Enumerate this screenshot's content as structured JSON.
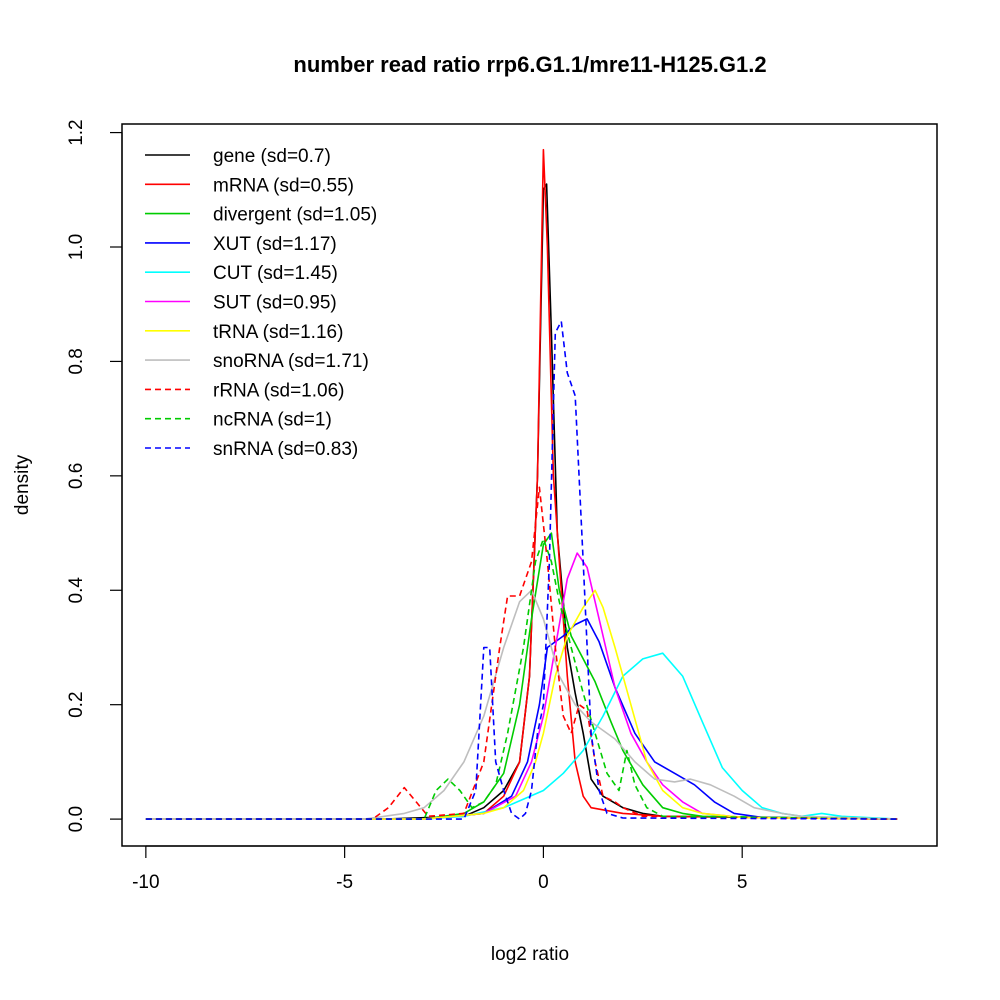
{
  "chart_data": {
    "type": "line",
    "title": "number read ratio rrp6.G1.1/mre11-H125.G1.2",
    "xlabel": "log2 ratio",
    "ylabel": "density",
    "xlim": [
      -10.6,
      9.9
    ],
    "ylim": [
      -0.047,
      1.215
    ],
    "x_ticks": [
      -10,
      -5,
      0,
      5
    ],
    "x_tick_labels": [
      "-10",
      "-5",
      "0",
      "5"
    ],
    "y_ticks": [
      0.0,
      0.2,
      0.4,
      0.6,
      0.8,
      1.0,
      1.2
    ],
    "y_tick_labels": [
      "0.0",
      "0.2",
      "0.4",
      "0.6",
      "0.8",
      "1.0",
      "1.2"
    ],
    "grid": false,
    "legend_position": "top-left",
    "series": [
      {
        "name": "gene (sd=0.7)",
        "color": "#000000",
        "dash": "solid",
        "points": [
          [
            -10,
            0
          ],
          [
            -4,
            0
          ],
          [
            -2,
            0.005
          ],
          [
            -1.5,
            0.02
          ],
          [
            -1,
            0.05
          ],
          [
            -0.6,
            0.1
          ],
          [
            -0.35,
            0.25
          ],
          [
            -0.15,
            0.6
          ],
          [
            0,
            1.1
          ],
          [
            0.08,
            1.11
          ],
          [
            0.2,
            0.85
          ],
          [
            0.35,
            0.5
          ],
          [
            0.6,
            0.3
          ],
          [
            0.8,
            0.22
          ],
          [
            1,
            0.15
          ],
          [
            1.2,
            0.07
          ],
          [
            1.5,
            0.04
          ],
          [
            2,
            0.02
          ],
          [
            2.5,
            0.01
          ],
          [
            3,
            0.005
          ],
          [
            8.9,
            0
          ]
        ]
      },
      {
        "name": "mRNA (sd=0.55)",
        "color": "#ff0000",
        "dash": "solid",
        "points": [
          [
            -10,
            0
          ],
          [
            -3,
            0
          ],
          [
            -1.5,
            0.01
          ],
          [
            -1,
            0.04
          ],
          [
            -0.6,
            0.1
          ],
          [
            -0.35,
            0.25
          ],
          [
            -0.15,
            0.6
          ],
          [
            0,
            1.17
          ],
          [
            0.1,
            1.0
          ],
          [
            0.25,
            0.6
          ],
          [
            0.45,
            0.4
          ],
          [
            0.6,
            0.25
          ],
          [
            0.8,
            0.1
          ],
          [
            1,
            0.04
          ],
          [
            1.2,
            0.02
          ],
          [
            2,
            0.01
          ],
          [
            3,
            0.005
          ],
          [
            8.9,
            0
          ]
        ]
      },
      {
        "name": "divergent (sd=1.05)",
        "color": "#00cc00",
        "dash": "solid",
        "points": [
          [
            -10,
            0
          ],
          [
            -3,
            0
          ],
          [
            -2,
            0.01
          ],
          [
            -1.5,
            0.03
          ],
          [
            -1,
            0.08
          ],
          [
            -0.6,
            0.2
          ],
          [
            -0.3,
            0.35
          ],
          [
            0,
            0.48
          ],
          [
            0.2,
            0.5
          ],
          [
            0.4,
            0.4
          ],
          [
            0.7,
            0.32
          ],
          [
            1,
            0.28
          ],
          [
            1.3,
            0.24
          ],
          [
            1.7,
            0.17
          ],
          [
            2,
            0.12
          ],
          [
            2.5,
            0.06
          ],
          [
            3,
            0.02
          ],
          [
            3.5,
            0.01
          ],
          [
            4,
            0.005
          ],
          [
            8.9,
            0
          ]
        ]
      },
      {
        "name": "XUT (sd=1.17)",
        "color": "#0000ff",
        "dash": "solid",
        "points": [
          [
            -10,
            0
          ],
          [
            -3,
            0
          ],
          [
            -1.5,
            0.01
          ],
          [
            -0.8,
            0.04
          ],
          [
            -0.4,
            0.1
          ],
          [
            -0.1,
            0.2
          ],
          [
            0.1,
            0.3
          ],
          [
            0.5,
            0.32
          ],
          [
            0.8,
            0.34
          ],
          [
            1.1,
            0.35
          ],
          [
            1.4,
            0.31
          ],
          [
            1.8,
            0.23
          ],
          [
            2.3,
            0.15
          ],
          [
            2.8,
            0.1
          ],
          [
            3.3,
            0.08
          ],
          [
            3.8,
            0.06
          ],
          [
            4.3,
            0.03
          ],
          [
            4.8,
            0.01
          ],
          [
            5.5,
            0.003
          ],
          [
            8.9,
            0
          ]
        ]
      },
      {
        "name": "CUT (sd=1.45)",
        "color": "#00ffff",
        "dash": "solid",
        "points": [
          [
            -10,
            0
          ],
          [
            -3,
            0
          ],
          [
            -2,
            0.005
          ],
          [
            -1,
            0.02
          ],
          [
            0,
            0.05
          ],
          [
            0.5,
            0.08
          ],
          [
            1,
            0.12
          ],
          [
            1.5,
            0.18
          ],
          [
            2,
            0.25
          ],
          [
            2.5,
            0.28
          ],
          [
            3,
            0.29
          ],
          [
            3.5,
            0.25
          ],
          [
            4,
            0.17
          ],
          [
            4.5,
            0.09
          ],
          [
            5,
            0.05
          ],
          [
            5.5,
            0.02
          ],
          [
            6,
            0.01
          ],
          [
            6.5,
            0.005
          ],
          [
            7,
            0.01
          ],
          [
            7.5,
            0.005
          ],
          [
            8.9,
            0
          ]
        ]
      },
      {
        "name": "SUT (sd=0.95)",
        "color": "#ff00ff",
        "dash": "solid",
        "points": [
          [
            -10,
            0
          ],
          [
            -3,
            0
          ],
          [
            -1.5,
            0.01
          ],
          [
            -0.7,
            0.04
          ],
          [
            -0.3,
            0.1
          ],
          [
            0,
            0.18
          ],
          [
            0.3,
            0.3
          ],
          [
            0.6,
            0.42
          ],
          [
            0.85,
            0.465
          ],
          [
            1.1,
            0.44
          ],
          [
            1.4,
            0.35
          ],
          [
            1.8,
            0.23
          ],
          [
            2.2,
            0.15
          ],
          [
            2.6,
            0.1
          ],
          [
            3,
            0.06
          ],
          [
            3.5,
            0.03
          ],
          [
            4,
            0.01
          ],
          [
            5,
            0.003
          ],
          [
            8.9,
            0
          ]
        ]
      },
      {
        "name": "tRNA (sd=1.16)",
        "color": "#ffff00",
        "dash": "solid",
        "points": [
          [
            -10,
            0
          ],
          [
            -3,
            0
          ],
          [
            -1.5,
            0.01
          ],
          [
            -1,
            0.02
          ],
          [
            -0.5,
            0.05
          ],
          [
            -0.2,
            0.1
          ],
          [
            0,
            0.15
          ],
          [
            0.3,
            0.25
          ],
          [
            0.6,
            0.32
          ],
          [
            1,
            0.37
          ],
          [
            1.3,
            0.4
          ],
          [
            1.5,
            0.37
          ],
          [
            1.8,
            0.3
          ],
          [
            2.2,
            0.2
          ],
          [
            2.6,
            0.1
          ],
          [
            3,
            0.05
          ],
          [
            3.5,
            0.02
          ],
          [
            4,
            0.01
          ],
          [
            5,
            0.003
          ],
          [
            8.9,
            0
          ]
        ]
      },
      {
        "name": "snoRNA (sd=1.71)",
        "color": "#bebebe",
        "dash": "solid",
        "points": [
          [
            -10,
            0
          ],
          [
            -4.5,
            0
          ],
          [
            -4,
            0.005
          ],
          [
            -3.5,
            0.01
          ],
          [
            -3,
            0.02
          ],
          [
            -2.5,
            0.05
          ],
          [
            -2,
            0.1
          ],
          [
            -1.5,
            0.18
          ],
          [
            -1,
            0.3
          ],
          [
            -0.6,
            0.38
          ],
          [
            -0.3,
            0.4
          ],
          [
            0,
            0.35
          ],
          [
            0.4,
            0.25
          ],
          [
            0.8,
            0.2
          ],
          [
            1.2,
            0.17
          ],
          [
            1.8,
            0.14
          ],
          [
            2.3,
            0.1
          ],
          [
            2.8,
            0.07
          ],
          [
            3.3,
            0.065
          ],
          [
            3.7,
            0.07
          ],
          [
            4.2,
            0.06
          ],
          [
            4.8,
            0.04
          ],
          [
            5.3,
            0.02
          ],
          [
            6,
            0.01
          ],
          [
            6.5,
            0.005
          ],
          [
            8.9,
            0
          ]
        ]
      },
      {
        "name": "rRNA (sd=1.06)",
        "color": "#ff0000",
        "dash": "dashed",
        "points": [
          [
            -10,
            0
          ],
          [
            -4.3,
            0
          ],
          [
            -3.9,
            0.02
          ],
          [
            -3.5,
            0.055
          ],
          [
            -3.2,
            0.03
          ],
          [
            -2.9,
            0.005
          ],
          [
            -2,
            0.01
          ],
          [
            -1.5,
            0.1
          ],
          [
            -1.1,
            0.3
          ],
          [
            -0.9,
            0.39
          ],
          [
            -0.6,
            0.39
          ],
          [
            -0.3,
            0.45
          ],
          [
            -0.1,
            0.58
          ],
          [
            0.1,
            0.45
          ],
          [
            0.3,
            0.3
          ],
          [
            0.5,
            0.18
          ],
          [
            0.7,
            0.15
          ],
          [
            0.9,
            0.2
          ],
          [
            1.1,
            0.19
          ],
          [
            1.3,
            0.1
          ],
          [
            1.5,
            0.04
          ],
          [
            1.8,
            0.03
          ],
          [
            2,
            0.02
          ],
          [
            2.5,
            0.005
          ],
          [
            8.9,
            0
          ]
        ]
      },
      {
        "name": "ncRNA (sd=1)",
        "color": "#00cc00",
        "dash": "dashed",
        "points": [
          [
            -10,
            0
          ],
          [
            -3,
            0
          ],
          [
            -2.7,
            0.05
          ],
          [
            -2.4,
            0.07
          ],
          [
            -2.1,
            0.05
          ],
          [
            -1.8,
            0.02
          ],
          [
            -1.5,
            0.03
          ],
          [
            -1.2,
            0.06
          ],
          [
            -0.9,
            0.15
          ],
          [
            -0.5,
            0.3
          ],
          [
            -0.2,
            0.45
          ],
          [
            0,
            0.49
          ],
          [
            0.2,
            0.45
          ],
          [
            0.4,
            0.38
          ],
          [
            0.7,
            0.3
          ],
          [
            1,
            0.22
          ],
          [
            1.3,
            0.15
          ],
          [
            1.6,
            0.08
          ],
          [
            1.9,
            0.05
          ],
          [
            2.1,
            0.12
          ],
          [
            2.3,
            0.06
          ],
          [
            2.6,
            0.02
          ],
          [
            3,
            0.005
          ],
          [
            8.9,
            0
          ]
        ]
      },
      {
        "name": "snRNA (sd=0.83)",
        "color": "#0000ff",
        "dash": "dashed",
        "points": [
          [
            -10,
            0
          ],
          [
            -2,
            0
          ],
          [
            -1.7,
            0.05
          ],
          [
            -1.5,
            0.3
          ],
          [
            -1.35,
            0.3
          ],
          [
            -1.2,
            0.1
          ],
          [
            -1,
            0.05
          ],
          [
            -0.8,
            0.01
          ],
          [
            -0.6,
            0.0
          ],
          [
            -0.45,
            0.01
          ],
          [
            -0.3,
            0.05
          ],
          [
            -0.15,
            0.15
          ],
          [
            0,
            0.2
          ],
          [
            0.15,
            0.45
          ],
          [
            0.3,
            0.85
          ],
          [
            0.45,
            0.87
          ],
          [
            0.6,
            0.78
          ],
          [
            0.8,
            0.74
          ],
          [
            1,
            0.45
          ],
          [
            1.2,
            0.15
          ],
          [
            1.4,
            0.05
          ],
          [
            1.6,
            0.01
          ],
          [
            2,
            0.002
          ],
          [
            8.9,
            0
          ]
        ]
      }
    ]
  }
}
